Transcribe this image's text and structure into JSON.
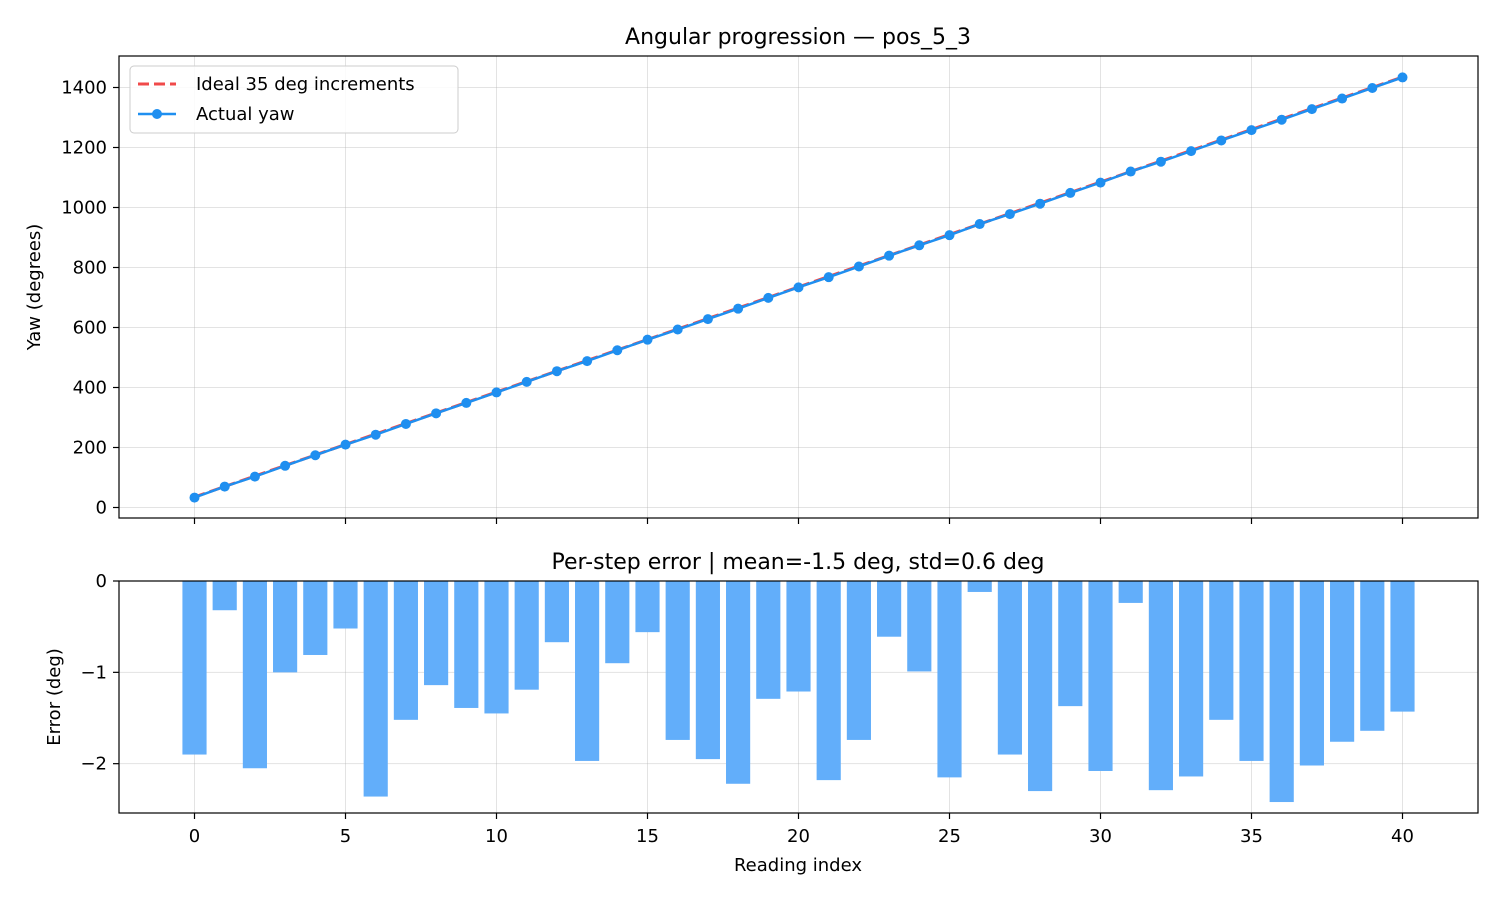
{
  "chart_data": [
    {
      "type": "line",
      "title": "Angular progression — pos_5_3",
      "ylabel": "Yaw (degrees)",
      "xlabel": "",
      "xlim": [
        -2.5,
        42.5
      ],
      "ylim": [
        -35,
        1505
      ],
      "x_ticks": [
        0,
        5,
        10,
        15,
        20,
        25,
        30,
        35,
        40
      ],
      "y_ticks": [
        0,
        200,
        400,
        600,
        800,
        1000,
        1200,
        1400
      ],
      "grid": true,
      "legend": "top-left",
      "colors": {
        "ideal": "#f04a4a",
        "actual": "#1f8ff0"
      },
      "series": [
        {
          "name": "Ideal 35 deg increments",
          "style": "dashed",
          "x": [
            0,
            1,
            2,
            3,
            4,
            5,
            6,
            7,
            8,
            9,
            10,
            11,
            12,
            13,
            14,
            15,
            16,
            17,
            18,
            19,
            20,
            21,
            22,
            23,
            24,
            25,
            26,
            27,
            28,
            29,
            30,
            31,
            32,
            33,
            34,
            35,
            36,
            37,
            38,
            39,
            40
          ],
          "values": [
            35,
            70,
            105,
            140,
            175,
            210,
            245,
            280,
            315,
            350,
            385,
            420,
            455,
            490,
            525,
            560,
            595,
            630,
            665,
            700,
            735,
            770,
            805,
            840,
            875,
            910,
            945,
            980,
            1015,
            1050,
            1085,
            1120,
            1155,
            1190,
            1225,
            1260,
            1295,
            1330,
            1365,
            1400,
            1435
          ]
        },
        {
          "name": "Actual yaw",
          "style": "solid-markers",
          "x": [
            0,
            1,
            2,
            3,
            4,
            5,
            6,
            7,
            8,
            9,
            10,
            11,
            12,
            13,
            14,
            15,
            16,
            17,
            18,
            19,
            20,
            21,
            22,
            23,
            24,
            25,
            26,
            27,
            28,
            29,
            30,
            31,
            32,
            33,
            34,
            35,
            36,
            37,
            38,
            39,
            40
          ],
          "values": [
            33.1,
            69.7,
            102.9,
            139.0,
            174.2,
            209.5,
            242.6,
            278.5,
            313.9,
            348.6,
            383.6,
            418.8,
            454.3,
            488.0,
            524.1,
            559.4,
            593.3,
            628.0,
            662.8,
            698.7,
            733.8,
            767.8,
            803.3,
            839.4,
            874.0,
            907.8,
            944.9,
            978.1,
            1012.7,
            1048.6,
            1082.9,
            1119.8,
            1152.7,
            1187.9,
            1223.5,
            1258.0,
            1292.6,
            1328.0,
            1363.2,
            1398.4,
            1433.6
          ]
        }
      ]
    },
    {
      "type": "bar",
      "title": "Per-step error  |  mean=-1.5 deg,  std=0.6 deg",
      "xlabel": "Reading index",
      "ylabel": "Error (deg)",
      "xlim": [
        -2.5,
        42.5
      ],
      "ylim": [
        -2.54,
        0
      ],
      "x_ticks": [
        0,
        5,
        10,
        15,
        20,
        25,
        30,
        35,
        40
      ],
      "y_ticks": [
        0,
        -1,
        -2
      ],
      "y_tick_labels": [
        "0",
        "−1",
        "−2"
      ],
      "grid": true,
      "colors": {
        "bar": "#62aefa",
        "zero_line": "#f04a4a"
      },
      "x": [
        0,
        1,
        2,
        3,
        4,
        5,
        6,
        7,
        8,
        9,
        10,
        11,
        12,
        13,
        14,
        15,
        16,
        17,
        18,
        19,
        20,
        21,
        22,
        23,
        24,
        25,
        26,
        27,
        28,
        29,
        30,
        31,
        32,
        33,
        34,
        35,
        36,
        37,
        38,
        39,
        40
      ],
      "values": [
        -1.9,
        -0.32,
        -2.05,
        -1.0,
        -0.81,
        -0.52,
        -2.36,
        -1.52,
        -1.14,
        -1.39,
        -1.45,
        -1.19,
        -0.67,
        -1.97,
        -0.9,
        -0.56,
        -1.74,
        -1.95,
        -2.22,
        -1.29,
        -1.21,
        -2.18,
        -1.74,
        -0.61,
        -0.99,
        -2.15,
        -0.12,
        -1.9,
        -2.3,
        -1.37,
        -2.08,
        -0.24,
        -2.29,
        -2.14,
        -1.52,
        -1.97,
        -2.42,
        -2.02,
        -1.76,
        -1.64,
        -1.43
      ]
    }
  ],
  "legend": {
    "items": [
      {
        "label": "Ideal 35 deg increments",
        "icon": "dashed-line-icon"
      },
      {
        "label": "Actual yaw",
        "icon": "line-marker-icon"
      }
    ]
  }
}
